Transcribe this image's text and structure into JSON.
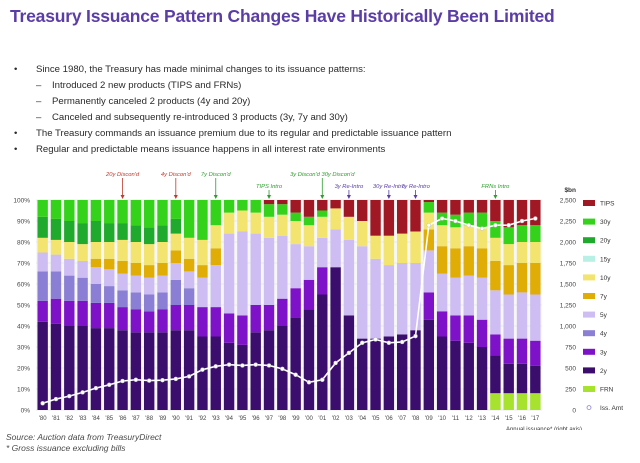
{
  "title": "Treasury Issuance Pattern Changes Have Historically Been Limited",
  "bullets": [
    {
      "level": 0,
      "text": "Since 1980, the Treasury has made minimal changes to its issuance patterns:"
    },
    {
      "level": 1,
      "text": "Introduced 2 new products (TIPS and FRNs)"
    },
    {
      "level": 1,
      "text": "Permanently canceled 2 products (4y and 20y)"
    },
    {
      "level": 1,
      "text": "Canceled and subsequently re-introduced 3 products (3y, 7y and 30y)"
    },
    {
      "level": 0,
      "text": "The Treasury commands an issuance premium due to its regular and predictable issuance pattern"
    },
    {
      "level": 0,
      "text": "Regular and predictable means issuance happens in all interest rate environments"
    }
  ],
  "footer": {
    "source": "Source: Auction data from TreasuryDirect",
    "note": "* Gross issuance excluding bills"
  },
  "chart_data": {
    "type": "bar",
    "stacked": true,
    "categories": [
      "'80",
      "'81",
      "'82",
      "'83",
      "'84",
      "'85",
      "'86",
      "'87",
      "'88",
      "'89",
      "'90",
      "'91",
      "'92",
      "'93",
      "'94",
      "'95",
      "'96",
      "'97",
      "'98",
      "'99",
      "'00",
      "'01",
      "'02",
      "'03",
      "'04",
      "'05",
      "'06",
      "'07",
      "'08",
      "'09",
      "'10",
      "'11",
      "'12",
      "'13",
      "'14",
      "'15",
      "'16",
      "'17"
    ],
    "y_left": {
      "ticks": [
        "0%",
        "10%",
        "20%",
        "30%",
        "40%",
        "50%",
        "60%",
        "70%",
        "80%",
        "90%",
        "100%"
      ],
      "range": [
        0,
        100
      ]
    },
    "y_right": {
      "label": "$bn",
      "ticks": [
        "0",
        "250",
        "500",
        "750",
        "1,000",
        "1,250",
        "1,500",
        "1,750",
        "2,000",
        "2,250",
        "2,500"
      ],
      "range": [
        0,
        2500
      ]
    },
    "x_note": "Annual issuance* (right axis)",
    "legend_position": "right",
    "series": [
      {
        "name": "FRN",
        "color": "#a6e22e",
        "values": [
          0,
          0,
          0,
          0,
          0,
          0,
          0,
          0,
          0,
          0,
          0,
          0,
          0,
          0,
          0,
          0,
          0,
          0,
          0,
          0,
          0,
          0,
          0,
          0,
          0,
          0,
          0,
          0,
          0,
          0,
          0,
          0,
          0,
          0,
          8,
          8,
          8,
          8
        ]
      },
      {
        "name": "2y",
        "color": "#3b0e6e",
        "values": [
          42,
          41,
          40,
          40,
          39,
          39,
          38,
          37,
          37,
          37,
          38,
          38,
          35,
          35,
          32,
          31,
          37,
          38,
          40,
          44,
          48,
          55,
          68,
          45,
          34,
          34,
          35,
          36,
          38,
          43,
          35,
          33,
          32,
          30,
          18,
          14,
          14,
          13
        ]
      },
      {
        "name": "3y",
        "color": "#7e12c9",
        "values": [
          10,
          12,
          12,
          12,
          12,
          12,
          11,
          11,
          10,
          11,
          12,
          12,
          14,
          14,
          14,
          14,
          13,
          12,
          13,
          14,
          14,
          13,
          0,
          0,
          0,
          0,
          0,
          0,
          0,
          13,
          12,
          12,
          13,
          13,
          10,
          12,
          12,
          12
        ]
      },
      {
        "name": "4y",
        "color": "#8a7fd4",
        "values": [
          14,
          13,
          12,
          11,
          9,
          8,
          8,
          8,
          8,
          8,
          12,
          8,
          0,
          0,
          0,
          0,
          0,
          0,
          0,
          0,
          0,
          0,
          0,
          0,
          0,
          0,
          0,
          0,
          0,
          0,
          0,
          0,
          0,
          0,
          0,
          0,
          0,
          0
        ]
      },
      {
        "name": "5y",
        "color": "#cdbdf3",
        "values": [
          9,
          8,
          8,
          8,
          8,
          8,
          8,
          8,
          8,
          8,
          8,
          8,
          14,
          20,
          38,
          40,
          34,
          32,
          30,
          21,
          16,
          14,
          18,
          36,
          44,
          38,
          34,
          34,
          32,
          20,
          18,
          18,
          19,
          20,
          21,
          21,
          22,
          22
        ]
      },
      {
        "name": "7y",
        "color": "#e0ad06",
        "values": [
          0,
          0,
          0,
          0,
          4,
          5,
          6,
          6,
          6,
          6,
          6,
          6,
          6,
          8,
          0,
          0,
          0,
          0,
          0,
          0,
          0,
          0,
          0,
          0,
          0,
          0,
          0,
          0,
          0,
          10,
          13,
          14,
          14,
          14,
          14,
          14,
          14,
          15
        ]
      },
      {
        "name": "10y",
        "color": "#f3e46f",
        "values": [
          7,
          7,
          8,
          8,
          8,
          8,
          10,
          10,
          10,
          10,
          8,
          10,
          12,
          11,
          10,
          10,
          10,
          10,
          10,
          11,
          10,
          10,
          10,
          11,
          12,
          11,
          14,
          14,
          15,
          8,
          10,
          10,
          10,
          10,
          11,
          10,
          10,
          10
        ]
      },
      {
        "name": "15y",
        "color": "#b8f0e6",
        "values": [
          0,
          0,
          0,
          0,
          0,
          0,
          0,
          0,
          0,
          0,
          0,
          0,
          0,
          0,
          0,
          0,
          0,
          0,
          0,
          0,
          0,
          0,
          0,
          0,
          0,
          0,
          0,
          0,
          0,
          0,
          0,
          0,
          0,
          0,
          0,
          0,
          0,
          0
        ]
      },
      {
        "name": "20y",
        "color": "#1faa2e",
        "values": [
          10,
          10,
          10,
          10,
          10,
          9,
          8,
          8,
          8,
          8,
          7,
          0,
          0,
          0,
          0,
          0,
          0,
          0,
          0,
          0,
          0,
          0,
          0,
          0,
          0,
          0,
          0,
          0,
          0,
          0,
          0,
          0,
          0,
          0,
          0,
          0,
          0,
          0
        ]
      },
      {
        "name": "30y",
        "color": "#34d21b",
        "values": [
          8,
          9,
          10,
          11,
          10,
          11,
          11,
          12,
          13,
          12,
          9,
          18,
          19,
          12,
          6,
          5,
          6,
          6,
          5,
          4,
          4,
          3,
          0,
          0,
          0,
          0,
          0,
          0,
          0,
          5,
          6,
          6,
          6,
          7,
          8,
          8,
          8,
          8
        ]
      },
      {
        "name": "TIPS",
        "color": "#a01824",
        "values": [
          0,
          0,
          0,
          0,
          0,
          0,
          0,
          0,
          0,
          0,
          0,
          0,
          0,
          0,
          0,
          0,
          0,
          2,
          2,
          6,
          8,
          5,
          4,
          8,
          10,
          17,
          17,
          16,
          15,
          1,
          6,
          7,
          6,
          6,
          10,
          13,
          12,
          12
        ]
      }
    ],
    "line_series": {
      "name": "Iss. Amt",
      "axis": "right",
      "values": [
        80,
        130,
        165,
        210,
        260,
        300,
        345,
        360,
        350,
        355,
        370,
        400,
        480,
        520,
        540,
        530,
        540,
        530,
        490,
        420,
        330,
        360,
        560,
        680,
        800,
        840,
        800,
        810,
        880,
        2200,
        2280,
        2250,
        2200,
        2160,
        2200,
        2200,
        2250,
        2280
      ]
    },
    "annotations": [
      {
        "text": "20y Discon'd",
        "category": "'86",
        "color": "#c0392b"
      },
      {
        "text": "4y Discon'd",
        "category": "'90",
        "color": "#c0392b"
      },
      {
        "text": "7y Discon'd",
        "category": "'93",
        "color": "#2e9c2e"
      },
      {
        "text": "TIPS Intro",
        "category": "'97",
        "color": "#2e9c2e"
      },
      {
        "text": "3y Discon'd 30y Discon'd",
        "category": "'01",
        "color": "#2e9c2e"
      },
      {
        "text": "3y Re-Intro",
        "category": "'03",
        "color": "#5b3da6"
      },
      {
        "text": "30y Re-Intro",
        "category": "'06",
        "color": "#5b3da6"
      },
      {
        "text": "7y Re-Intro",
        "category": "'08",
        "color": "#5b3da6"
      },
      {
        "text": "FRNs Intro",
        "category": "'14",
        "color": "#2e9c2e"
      }
    ]
  }
}
